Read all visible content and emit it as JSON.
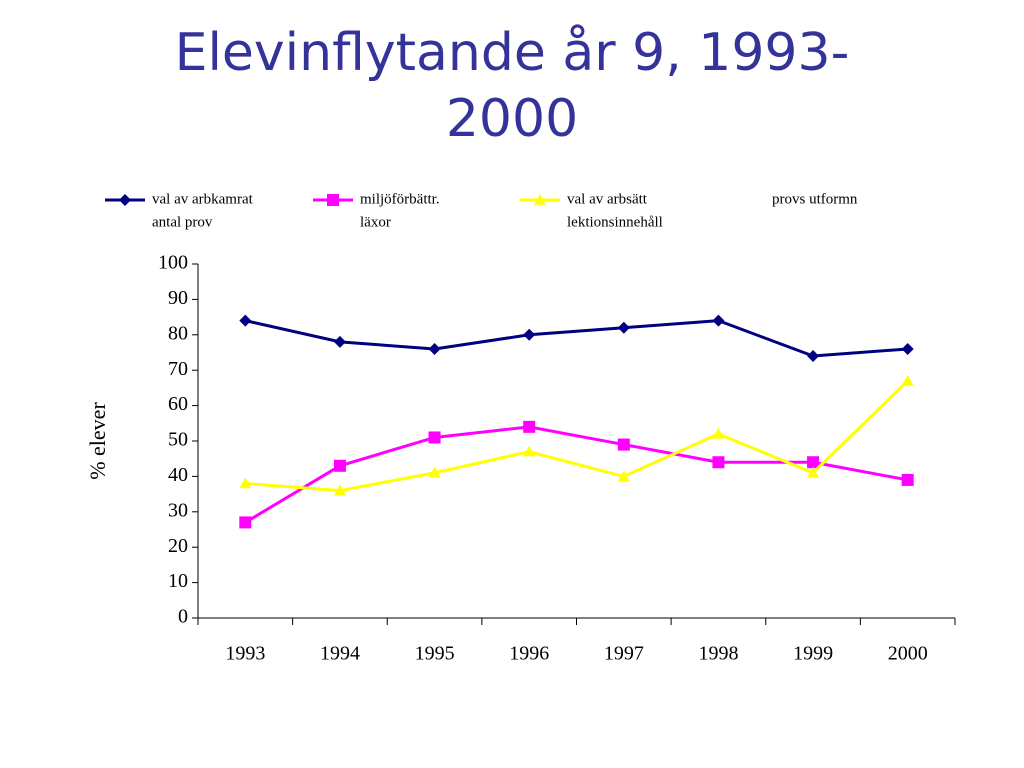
{
  "chart_data": {
    "type": "line",
    "title": "Elevinflytande år 9, 1993-2000",
    "y_label": "% elever",
    "categories": [
      "1993",
      "1994",
      "1995",
      "1996",
      "1997",
      "1998",
      "1999",
      "2000"
    ],
    "series": [
      {
        "name": "val av arbkamrat",
        "color": "#000080",
        "marker": "diamond",
        "values": [
          84,
          78,
          76,
          80,
          82,
          84,
          74,
          76
        ]
      },
      {
        "name": "miljöförbättr.",
        "color": "#ff00ff",
        "marker": "square",
        "values": [
          27,
          43,
          51,
          54,
          49,
          44,
          44,
          39
        ]
      },
      {
        "name": "val av arbsätt",
        "color": "#ffff00",
        "marker": "triangle",
        "values": [
          38,
          36,
          41,
          47,
          40,
          52,
          41,
          67
        ]
      },
      {
        "name": "provs utformn",
        "values": [
          null,
          null,
          null,
          null,
          null,
          null,
          null,
          null
        ]
      },
      {
        "name": "antal prov",
        "values": [
          null,
          null,
          null,
          null,
          null,
          null,
          null,
          null
        ]
      },
      {
        "name": "läxor",
        "values": [
          null,
          null,
          null,
          null,
          null,
          null,
          null,
          null
        ]
      },
      {
        "name": "lektionsinnehåll",
        "values": [
          null,
          null,
          null,
          null,
          null,
          null,
          null,
          null
        ]
      }
    ],
    "ylim": [
      0,
      100
    ],
    "yticks": [
      0,
      10,
      20,
      30,
      40,
      50,
      60,
      70,
      80,
      90,
      100
    ]
  }
}
